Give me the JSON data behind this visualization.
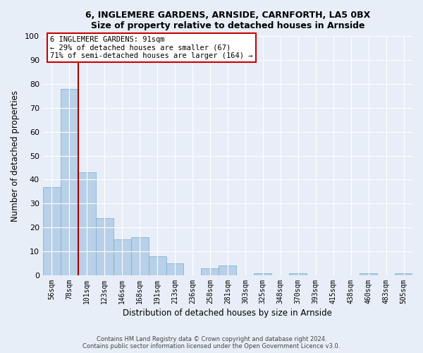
{
  "title": "6, INGLEMERE GARDENS, ARNSIDE, CARNFORTH, LA5 0BX",
  "subtitle": "Size of property relative to detached houses in Arnside",
  "xlabel": "Distribution of detached houses by size in Arnside",
  "ylabel": "Number of detached properties",
  "bar_labels": [
    "56sqm",
    "78sqm",
    "101sqm",
    "123sqm",
    "146sqm",
    "168sqm",
    "191sqm",
    "213sqm",
    "236sqm",
    "258sqm",
    "281sqm",
    "303sqm",
    "325sqm",
    "348sqm",
    "370sqm",
    "393sqm",
    "415sqm",
    "438sqm",
    "460sqm",
    "483sqm",
    "505sqm"
  ],
  "bar_values": [
    37,
    78,
    43,
    24,
    15,
    16,
    8,
    5,
    0,
    3,
    4,
    0,
    1,
    0,
    1,
    0,
    0,
    0,
    1,
    0,
    1
  ],
  "bar_color": "#b8d0e8",
  "bar_edge_color": "#7aaad0",
  "reference_line_label": "6 INGLEMERE GARDENS: 91sqm",
  "annotation_line1": "← 29% of detached houses are smaller (67)",
  "annotation_line2": "71% of semi-detached houses are larger (164) →",
  "annotation_box_color": "#ffffff",
  "annotation_box_edge_color": "#cc0000",
  "reference_line_color": "#aa0000",
  "ylim": [
    0,
    100
  ],
  "background_color": "#e8eef8",
  "plot_background": "#e8eef8",
  "footer1": "Contains HM Land Registry data © Crown copyright and database right 2024.",
  "footer2": "Contains public sector information licensed under the Open Government Licence v3.0."
}
